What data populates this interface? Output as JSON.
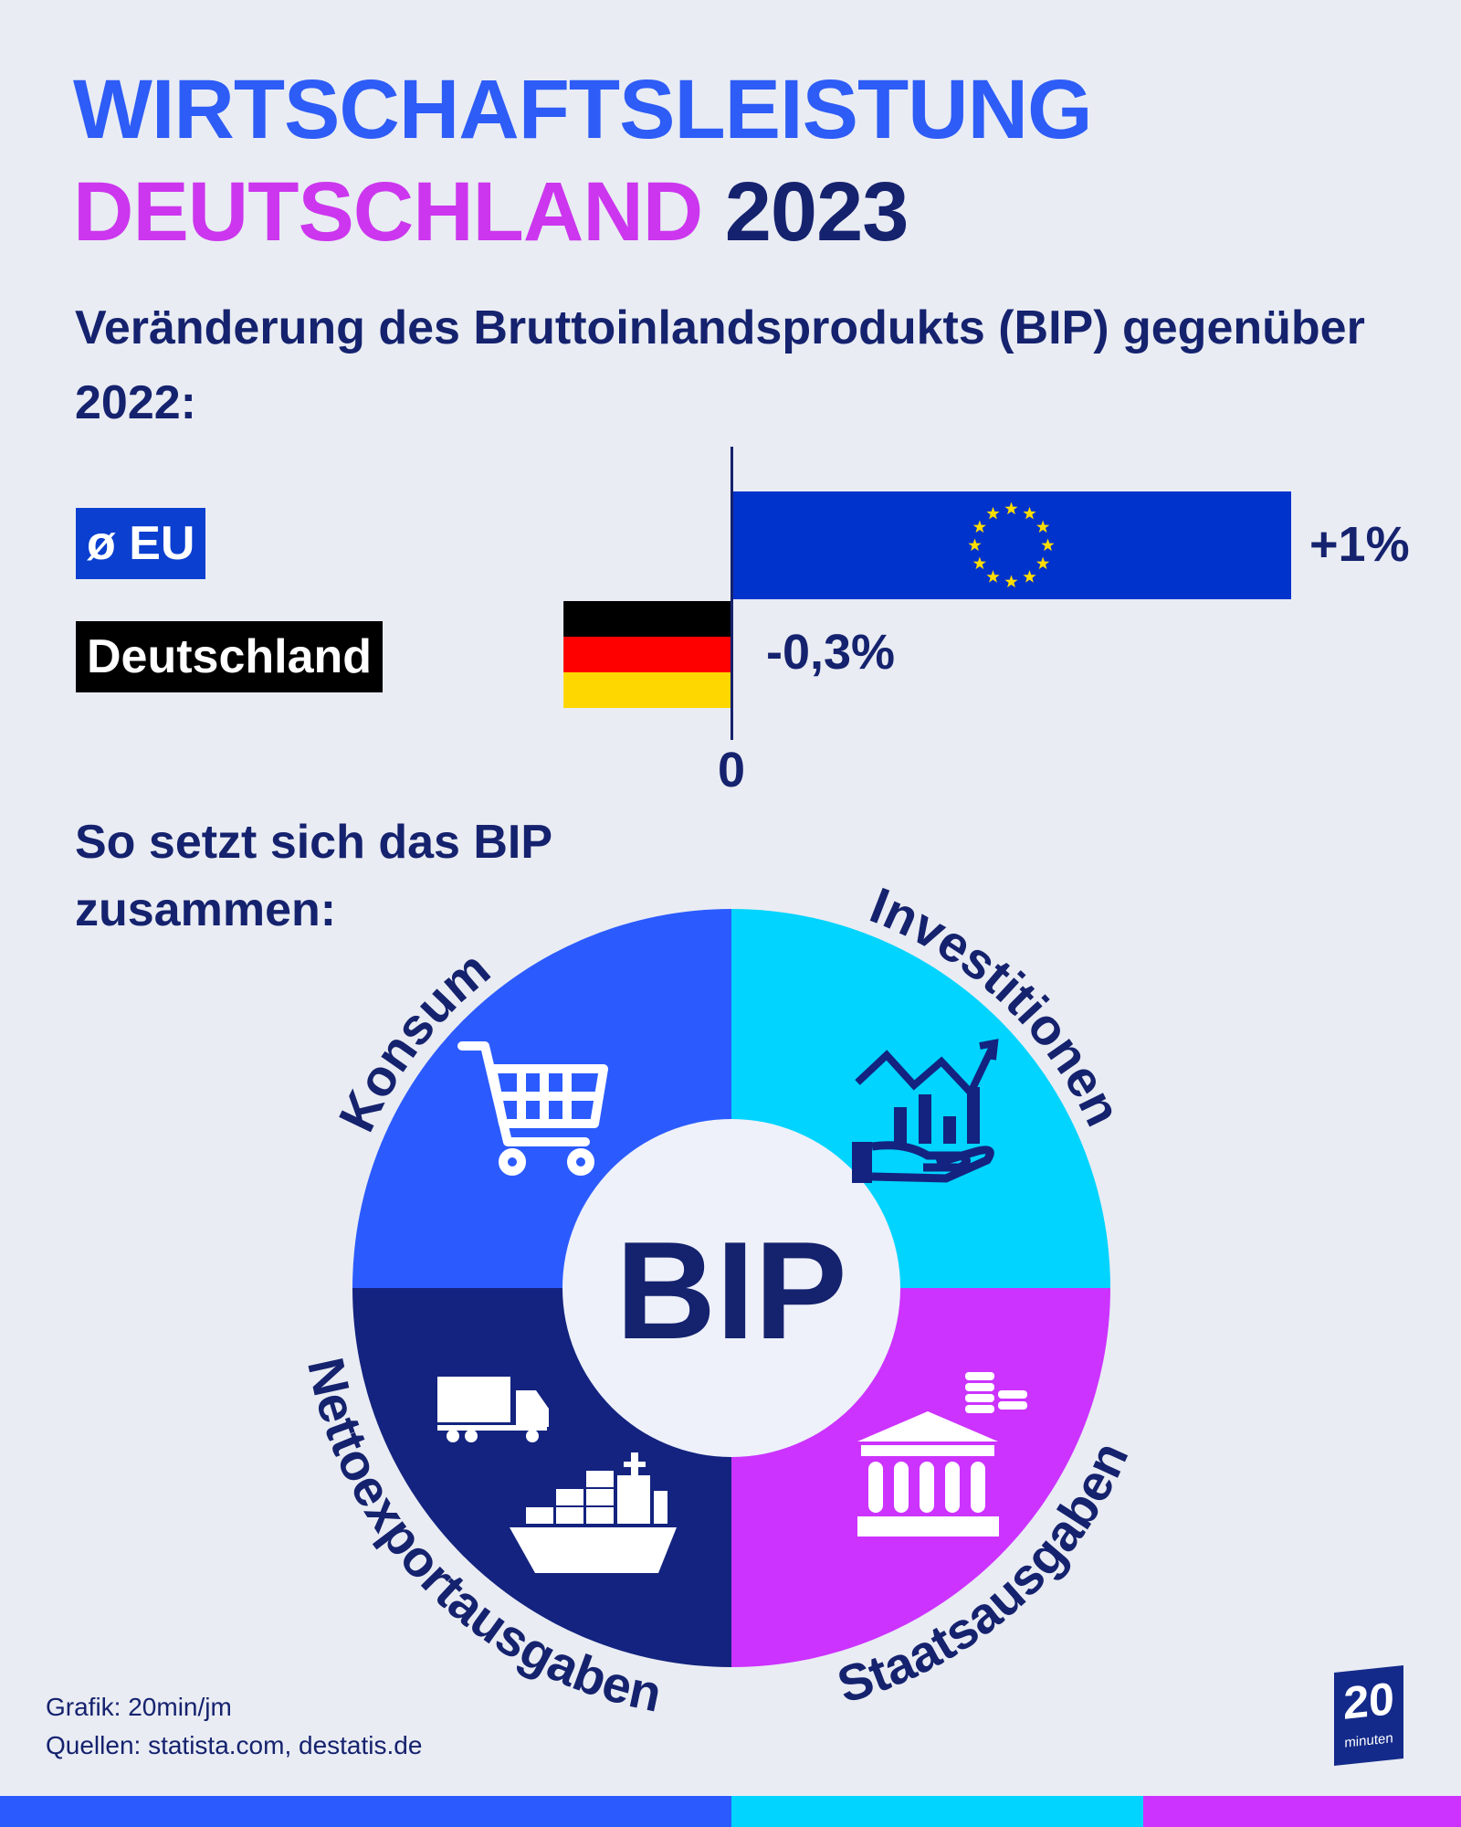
{
  "title": {
    "line1": "WIRTSCHAFTSLEISTUNG",
    "line2_highlight": "DEUTSCHLAND",
    "line2_year": "2023"
  },
  "subtitle": "Veränderung des Bruttoinlandsprodukts (BIP) gegenüber 2022:",
  "chart_data": {
    "type": "bar",
    "orientation": "horizontal",
    "categories": [
      "ø EU",
      "Deutschland"
    ],
    "values": [
      1,
      -0.3
    ],
    "value_labels": [
      "+1%",
      "-0,3%"
    ],
    "unit": "%",
    "axis_tick_labels": [
      "0"
    ],
    "bar_fills": [
      "eu-flag",
      "germany-flag"
    ],
    "colors": {
      "eu_bar": "#0033cc",
      "eu_stars": "#ffdd00",
      "de_black": "#000000",
      "de_red": "#ff0000",
      "de_gold": "#ffd700"
    }
  },
  "composition": {
    "heading": "So setzt sich das BIP zusammen:",
    "center_label": "BIP",
    "segments": [
      {
        "label": "Konsum",
        "color": "#2b5bff",
        "icon": "shopping-cart-icon"
      },
      {
        "label": "Investitionen",
        "color": "#00d4ff",
        "icon": "growth-chart-hand-icon"
      },
      {
        "label": "Nettoexportausgaben",
        "color": "#13237f",
        "icon": "truck-ship-icon"
      },
      {
        "label": "Staatsausgaben",
        "color": "#cc33ff",
        "icon": "bank-coins-icon"
      }
    ]
  },
  "footer": {
    "credit": "Grafik: 20min/jm",
    "sources": "Quellen: statista.com, destatis.de"
  },
  "logo": {
    "number": "20",
    "word": "minuten"
  },
  "colors": {
    "title_blue": "#2d5cf6",
    "title_magenta": "#cc36ee",
    "navy": "#15226e",
    "background": "#e9ecf3"
  }
}
